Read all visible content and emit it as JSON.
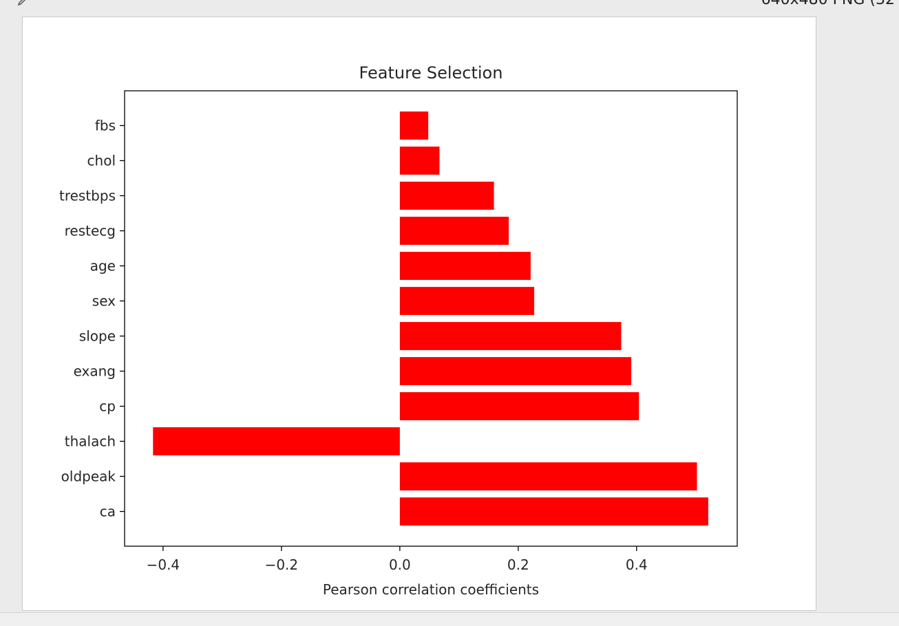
{
  "viewer": {
    "image_info": "640x480 PNG (32"
  },
  "chart_data": {
    "type": "bar",
    "orientation": "horizontal",
    "title": "Feature Selection",
    "xlabel": "Pearson correlation coefficients",
    "ylabel": "",
    "categories": [
      "ca",
      "oldpeak",
      "thalach",
      "cp",
      "exang",
      "slope",
      "sex",
      "age",
      "restecg",
      "trestbps",
      "chol",
      "fbs"
    ],
    "values": [
      0.521,
      0.502,
      -0.417,
      0.404,
      0.391,
      0.374,
      0.227,
      0.221,
      0.184,
      0.159,
      0.067,
      0.048
    ],
    "xlim": [
      -0.465,
      0.57
    ],
    "xticks": [
      -0.4,
      -0.2,
      0.0,
      0.2,
      0.4
    ],
    "xtick_labels": [
      "−0.4",
      "−0.2",
      "0.0",
      "0.2",
      "0.4"
    ],
    "bar_color": "#ff0000",
    "grid": false,
    "legend": false
  }
}
